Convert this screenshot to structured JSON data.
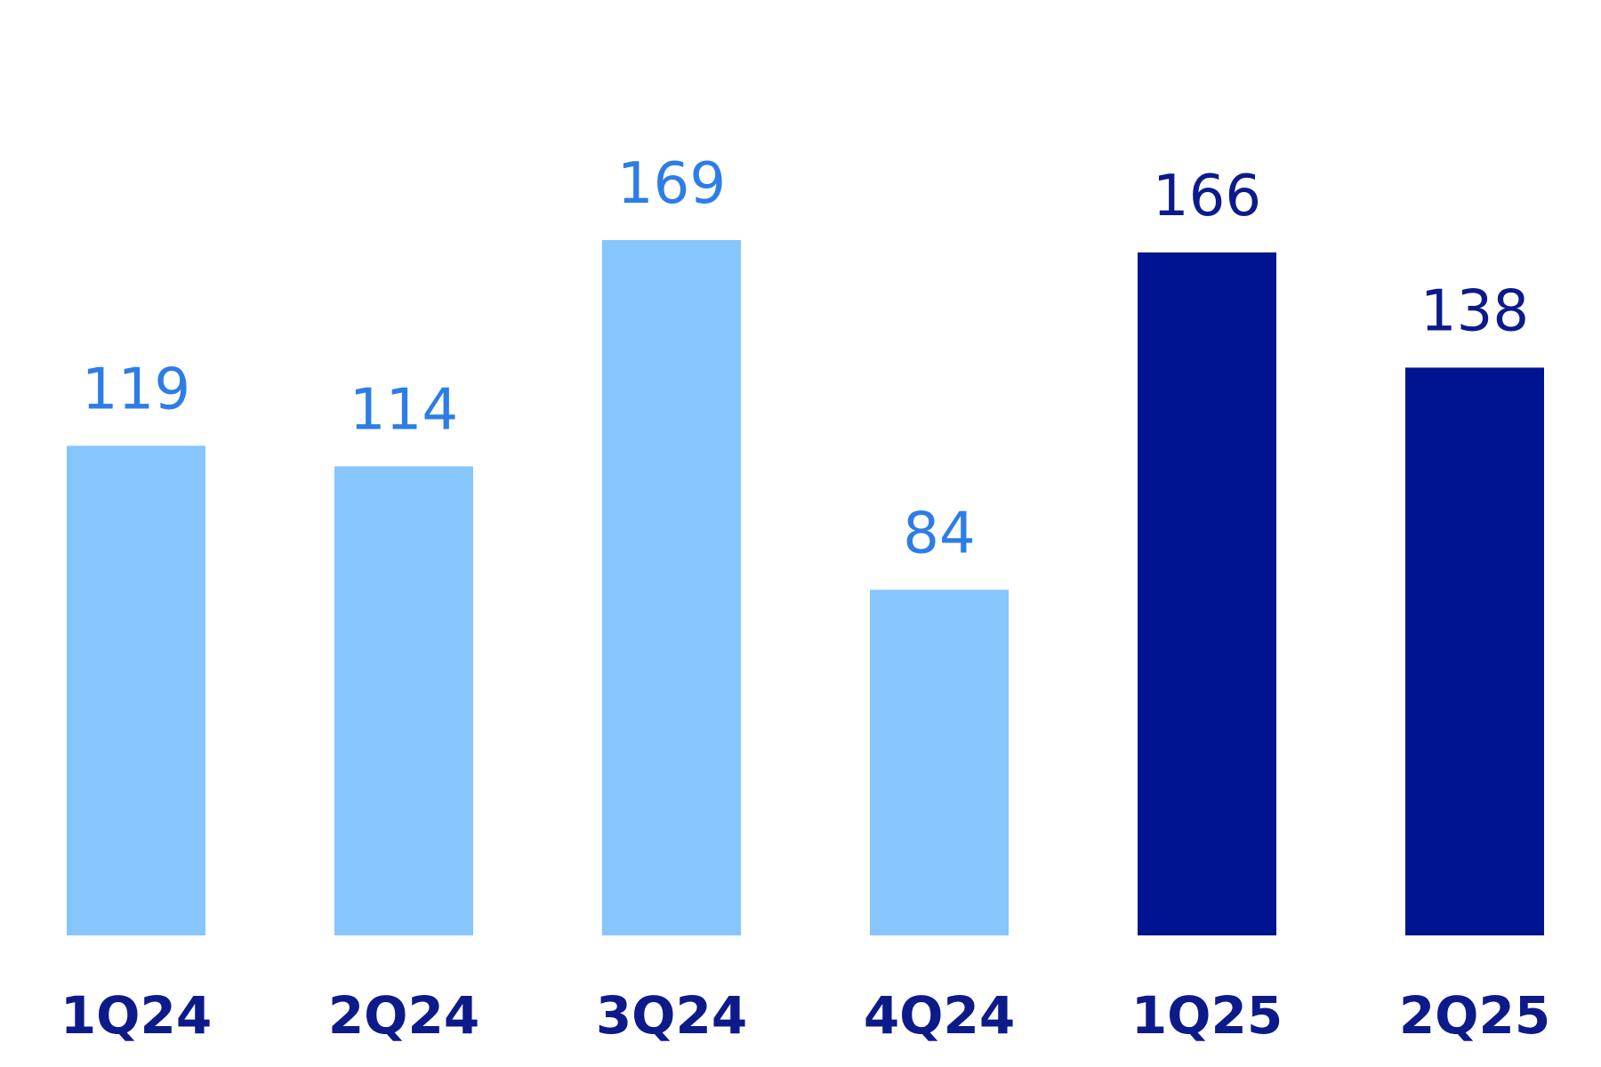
{
  "chart_data": {
    "type": "bar",
    "categories": [
      "1Q24",
      "2Q24",
      "3Q24",
      "4Q24",
      "1Q25",
      "2Q25"
    ],
    "values": [
      119,
      114,
      169,
      84,
      166,
      138
    ],
    "title": "",
    "xlabel": "",
    "ylabel": "",
    "ylim": [
      0,
      169
    ],
    "grid": false,
    "data_labels": true,
    "colors": {
      "bar_2024": "#87c5fd",
      "bar_2025": "#001391",
      "label_2024": "#2d7de7",
      "label_2025": "#0d1a8a",
      "category_label": "#0d1a8a"
    },
    "bar_color_groups": [
      "2024",
      "2024",
      "2024",
      "2024",
      "2025",
      "2025"
    ]
  }
}
